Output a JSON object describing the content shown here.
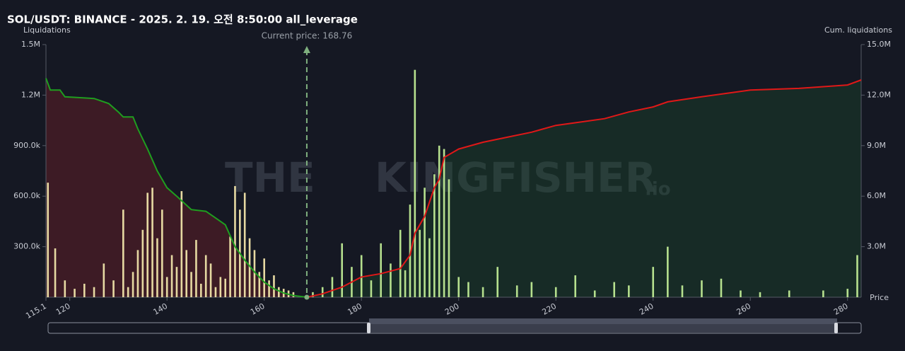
{
  "chart_data": {
    "type": "bar",
    "title": "SOL/USDT: BINANCE - 2025. 2. 19. 오전 8:50:00 all_leverage",
    "y_label": "Liquidations",
    "y2_label": "Cum. liquidations",
    "x_label": "Price",
    "current_price": {
      "value": 168.76,
      "label": "Current price: 168.76"
    },
    "watermark": [
      "THE",
      "KINGFISHER",
      ".io"
    ],
    "xlim": [
      115.1,
      282.8
    ],
    "xticks": [
      115.1,
      120,
      140,
      160,
      180,
      200,
      220,
      240,
      260,
      280
    ],
    "ylim": [
      0,
      1500000
    ],
    "yticks": [
      {
        "value": 300000,
        "label": "300.0k"
      },
      {
        "value": 600000,
        "label": "600.0k"
      },
      {
        "value": 900000,
        "label": "900.0k"
      },
      {
        "value": 1200000,
        "label": "1.2M"
      },
      {
        "value": 1500000,
        "label": "1.5M"
      }
    ],
    "y2lim": [
      0,
      15000000
    ],
    "y2ticks": [
      {
        "value": 3000000,
        "label": "3.0M"
      },
      {
        "value": 6000000,
        "label": "6.0M"
      },
      {
        "value": 9000000,
        "label": "9.0M"
      },
      {
        "value": 12000000,
        "label": "12.0M"
      },
      {
        "value": 15000000,
        "label": "15.0M"
      }
    ],
    "series": [
      {
        "type": "bar",
        "color": "#e6d9a2",
        "x": [
          115.5,
          117,
          119,
          121,
          123,
          125,
          127,
          129,
          131,
          132,
          133,
          134,
          135,
          136,
          137,
          138,
          139,
          140,
          141,
          142,
          143,
          144,
          145,
          146,
          147,
          148,
          149,
          150,
          151,
          152,
          153,
          154,
          155,
          156,
          157,
          158,
          159,
          160,
          161,
          162,
          163,
          164,
          165,
          166
        ],
        "values": [
          680000,
          290000,
          100000,
          50000,
          80000,
          60000,
          200000,
          100000,
          520000,
          60000,
          150000,
          280000,
          400000,
          620000,
          650000,
          350000,
          520000,
          120000,
          250000,
          180000,
          630000,
          280000,
          150000,
          340000,
          80000,
          250000,
          200000,
          60000,
          120000,
          110000,
          360000,
          660000,
          520000,
          620000,
          350000,
          280000,
          150000,
          230000,
          100000,
          130000,
          60000,
          50000,
          40000,
          30000
        ]
      },
      {
        "type": "bar",
        "color": "#b6e08e",
        "x": [
          170,
          172,
          174,
          176,
          178,
          180,
          182,
          184,
          186,
          188,
          189,
          190,
          191,
          192,
          193,
          194,
          195,
          196,
          197,
          198,
          200,
          202,
          205,
          208,
          212,
          215,
          220,
          224,
          228,
          232,
          235,
          240,
          243,
          246,
          250,
          254,
          258,
          262,
          268,
          275,
          280,
          282
        ],
        "values": [
          30000,
          60000,
          120000,
          320000,
          180000,
          250000,
          100000,
          320000,
          200000,
          400000,
          160000,
          550000,
          1350000,
          400000,
          650000,
          350000,
          730000,
          900000,
          880000,
          700000,
          120000,
          90000,
          60000,
          180000,
          70000,
          90000,
          60000,
          130000,
          40000,
          90000,
          70000,
          180000,
          300000,
          70000,
          100000,
          110000,
          40000,
          30000,
          40000,
          40000,
          50000,
          250000
        ]
      },
      {
        "type": "line",
        "axis": "y2",
        "color": "#1f9e1f",
        "fill": "rgba(110,30,40,0.45)",
        "x": [
          115.1,
          116,
          118,
          119,
          125,
          128,
          130,
          131,
          133,
          134,
          136,
          138,
          140,
          142,
          145,
          148,
          150,
          152,
          154,
          156,
          158,
          160,
          162,
          164,
          166,
          168.76
        ],
        "values": [
          13000000,
          12300000,
          12300000,
          11900000,
          11800000,
          11500000,
          11000000,
          10700000,
          10700000,
          10000000,
          8800000,
          7500000,
          6500000,
          6000000,
          5200000,
          5100000,
          4700000,
          4300000,
          3000000,
          2200000,
          1500000,
          900000,
          500000,
          250000,
          100000,
          0
        ]
      },
      {
        "type": "line",
        "axis": "y2",
        "color": "#e01818",
        "fill": "rgba(30,80,45,0.35)",
        "x": [
          168.76,
          172,
          176,
          180,
          184,
          188,
          190,
          191,
          193,
          195,
          196,
          197,
          200,
          205,
          210,
          215,
          220,
          225,
          230,
          235,
          240,
          243,
          250,
          255,
          260,
          270,
          275,
          280,
          282.8
        ],
        "values": [
          0,
          200000,
          600000,
          1200000,
          1400000,
          1700000,
          2500000,
          3800000,
          4800000,
          6500000,
          7000000,
          8300000,
          8800000,
          9200000,
          9500000,
          9800000,
          10200000,
          10400000,
          10600000,
          11000000,
          11300000,
          11600000,
          11900000,
          12100000,
          12300000,
          12400000,
          12500000,
          12600000,
          12900000
        ]
      }
    ]
  }
}
